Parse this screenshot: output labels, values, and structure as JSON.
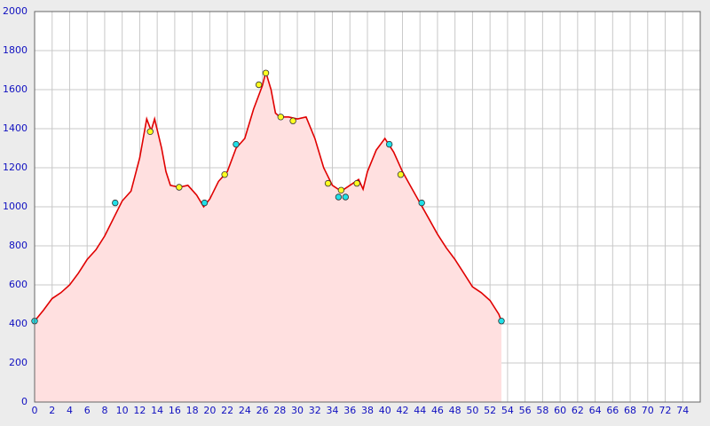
{
  "chart_data": {
    "type": "line",
    "series": [
      {
        "color": "#e00000",
        "fill": "#ffe0e0",
        "x": [
          0,
          1,
          2,
          3,
          4,
          5,
          6,
          7,
          8,
          9,
          10,
          11,
          12,
          12.8,
          13.3,
          13.7,
          14.5,
          15,
          15.5,
          16.5,
          17.5,
          18.5,
          19.3,
          20,
          21,
          22,
          23,
          24,
          25,
          26,
          26.4,
          27,
          27.5,
          28,
          29,
          30,
          31,
          32,
          33,
          34,
          35,
          36,
          37,
          37.5,
          38,
          39,
          40,
          41,
          42,
          43,
          44,
          45,
          46,
          47,
          48,
          49,
          50,
          51,
          52,
          53,
          53.3
        ],
        "values": [
          415,
          470,
          530,
          560,
          600,
          660,
          730,
          780,
          850,
          940,
          1030,
          1080,
          1250,
          1450,
          1390,
          1450,
          1300,
          1180,
          1110,
          1100,
          1110,
          1060,
          1000,
          1040,
          1130,
          1180,
          1300,
          1350,
          1500,
          1620,
          1690,
          1600,
          1480,
          1460,
          1460,
          1450,
          1460,
          1350,
          1200,
          1110,
          1080,
          1110,
          1140,
          1090,
          1180,
          1290,
          1350,
          1280,
          1180,
          1100,
          1020,
          940,
          860,
          790,
          730,
          660,
          590,
          560,
          520,
          450,
          415
        ]
      }
    ],
    "markers": [
      {
        "color": "#20e0e8",
        "x": [
          0,
          9.2,
          19.4,
          23,
          34.7,
          35.5,
          40.5,
          44.2,
          53.3
        ],
        "values": [
          415,
          1020,
          1020,
          1320,
          1050,
          1050,
          1320,
          1020,
          415
        ]
      },
      {
        "color": "#ffff20",
        "x": [
          13.2,
          16.5,
          21.7,
          25.6,
          26.4,
          28.1,
          29.5,
          33.5,
          35,
          36.8,
          41.8
        ],
        "values": [
          1385,
          1100,
          1165,
          1625,
          1685,
          1460,
          1440,
          1120,
          1085,
          1120,
          1165
        ]
      }
    ],
    "xlim": [
      0,
      76
    ],
    "ylim": [
      0,
      2000
    ],
    "xticks": [
      0,
      2,
      4,
      6,
      8,
      10,
      12,
      14,
      16,
      18,
      20,
      22,
      24,
      26,
      28,
      30,
      32,
      34,
      36,
      38,
      40,
      42,
      44,
      46,
      48,
      50,
      52,
      54,
      56,
      58,
      60,
      62,
      64,
      66,
      68,
      70,
      72,
      74
    ],
    "yticks": [
      0,
      200,
      400,
      600,
      800,
      1000,
      1200,
      1400,
      1600,
      1800,
      2000
    ],
    "grid": true
  }
}
